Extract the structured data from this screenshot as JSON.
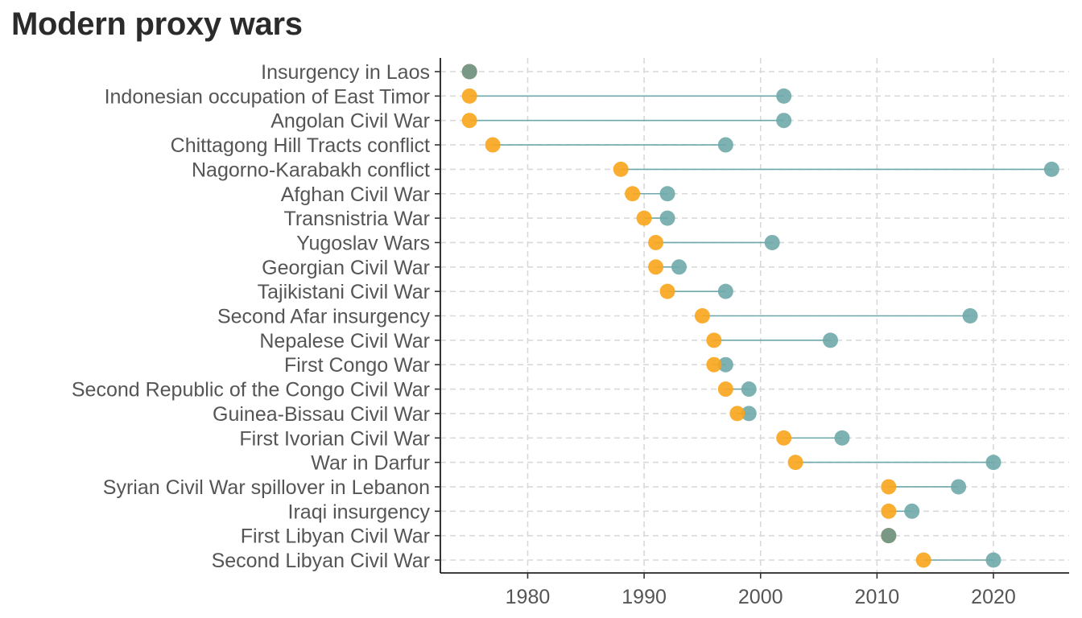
{
  "chart_data": {
    "type": "dumbbell",
    "title": "Modern proxy wars",
    "xlabel": "",
    "ylabel": "",
    "xlim": [
      1972.5,
      2026.5
    ],
    "x_ticks": [
      1980,
      1990,
      2000,
      2010,
      2020
    ],
    "grid": "dashed",
    "colors": {
      "start": "#f9a51b",
      "end": "#6fa8aa",
      "line": "#6fa8aa",
      "same": "#74978b"
    },
    "wars": [
      {
        "name": "Insurgency in Laos",
        "start": 1975,
        "end": 1975
      },
      {
        "name": "Indonesian occupation of East Timor",
        "start": 1975,
        "end": 2002
      },
      {
        "name": "Angolan Civil War",
        "start": 1975,
        "end": 2002
      },
      {
        "name": "Chittagong Hill Tracts conflict",
        "start": 1977,
        "end": 1997
      },
      {
        "name": "Nagorno-Karabakh conflict",
        "start": 1988,
        "end": 2025
      },
      {
        "name": "Afghan Civil War",
        "start": 1989,
        "end": 1992
      },
      {
        "name": "Transnistria War",
        "start": 1990,
        "end": 1992
      },
      {
        "name": "Yugoslav Wars",
        "start": 1991,
        "end": 2001
      },
      {
        "name": "Georgian Civil War",
        "start": 1991,
        "end": 1993
      },
      {
        "name": "Tajikistani Civil War",
        "start": 1992,
        "end": 1997
      },
      {
        "name": "Second Afar insurgency",
        "start": 1995,
        "end": 2018
      },
      {
        "name": "Nepalese Civil War",
        "start": 1996,
        "end": 2006
      },
      {
        "name": "First Congo War",
        "start": 1996,
        "end": 1997
      },
      {
        "name": "Second Republic of the Congo Civil War",
        "start": 1997,
        "end": 1999
      },
      {
        "name": "Guinea-Bissau Civil War",
        "start": 1998,
        "end": 1999
      },
      {
        "name": "First Ivorian Civil War",
        "start": 2002,
        "end": 2007
      },
      {
        "name": "War in Darfur",
        "start": 2003,
        "end": 2020
      },
      {
        "name": "Syrian Civil War spillover in Lebanon",
        "start": 2011,
        "end": 2017
      },
      {
        "name": "Iraqi insurgency",
        "start": 2011,
        "end": 2013
      },
      {
        "name": "First Libyan Civil War",
        "start": 2011,
        "end": 2011
      },
      {
        "name": "Second Libyan Civil War",
        "start": 2014,
        "end": 2020
      }
    ]
  }
}
